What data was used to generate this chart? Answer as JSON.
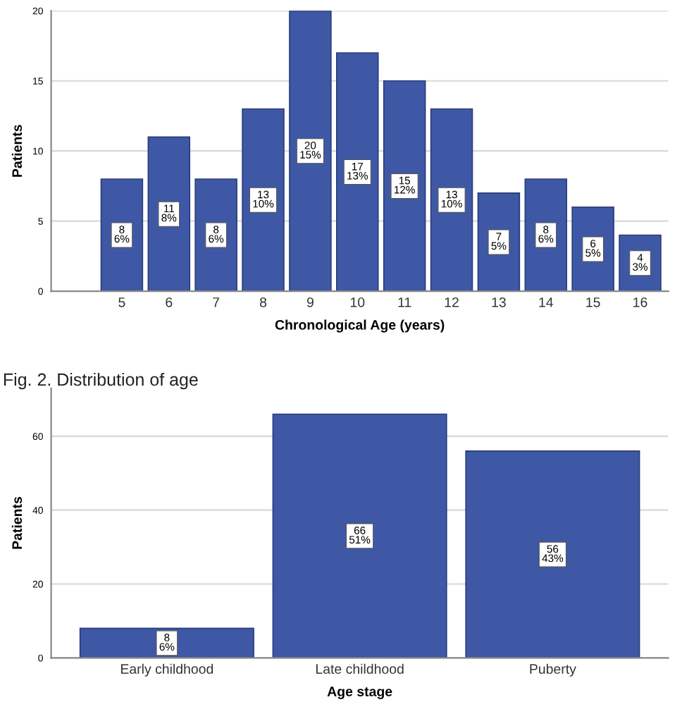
{
  "chart_data": [
    {
      "type": "bar",
      "xlabel": "Chronological Age (years)",
      "ylabel": "Patients",
      "categories": [
        "5",
        "6",
        "7",
        "8",
        "9",
        "10",
        "11",
        "12",
        "13",
        "14",
        "15",
        "16"
      ],
      "values": [
        8,
        11,
        8,
        13,
        20,
        17,
        15,
        13,
        7,
        8,
        6,
        4
      ],
      "value_labels": [
        "8\n6%",
        "11\n8%",
        "8\n6%",
        "13\n10%",
        "20\n15%",
        "17\n13%",
        "15\n12%",
        "13\n10%",
        "7\n5%",
        "8\n6%",
        "6\n5%",
        "4\n3%"
      ],
      "color": "#3f58a6",
      "ylim": [
        0,
        20
      ],
      "yticks": [
        0,
        5,
        10,
        15,
        20
      ],
      "grid": "y",
      "annotations": [
        "Fig. 2. Distribution of age"
      ]
    },
    {
      "type": "bar",
      "xlabel": "Age stage",
      "ylabel": "Patients",
      "categories": [
        "Early childhood",
        "Late childhood",
        "Puberty"
      ],
      "values": [
        8,
        66,
        56
      ],
      "value_labels": [
        "8\n6%",
        "66\n51%",
        "56\n43%"
      ],
      "color": "#3f58a6",
      "ylim": [
        0,
        73
      ],
      "yticks": [
        0,
        20,
        40,
        60
      ],
      "grid": "y"
    }
  ]
}
